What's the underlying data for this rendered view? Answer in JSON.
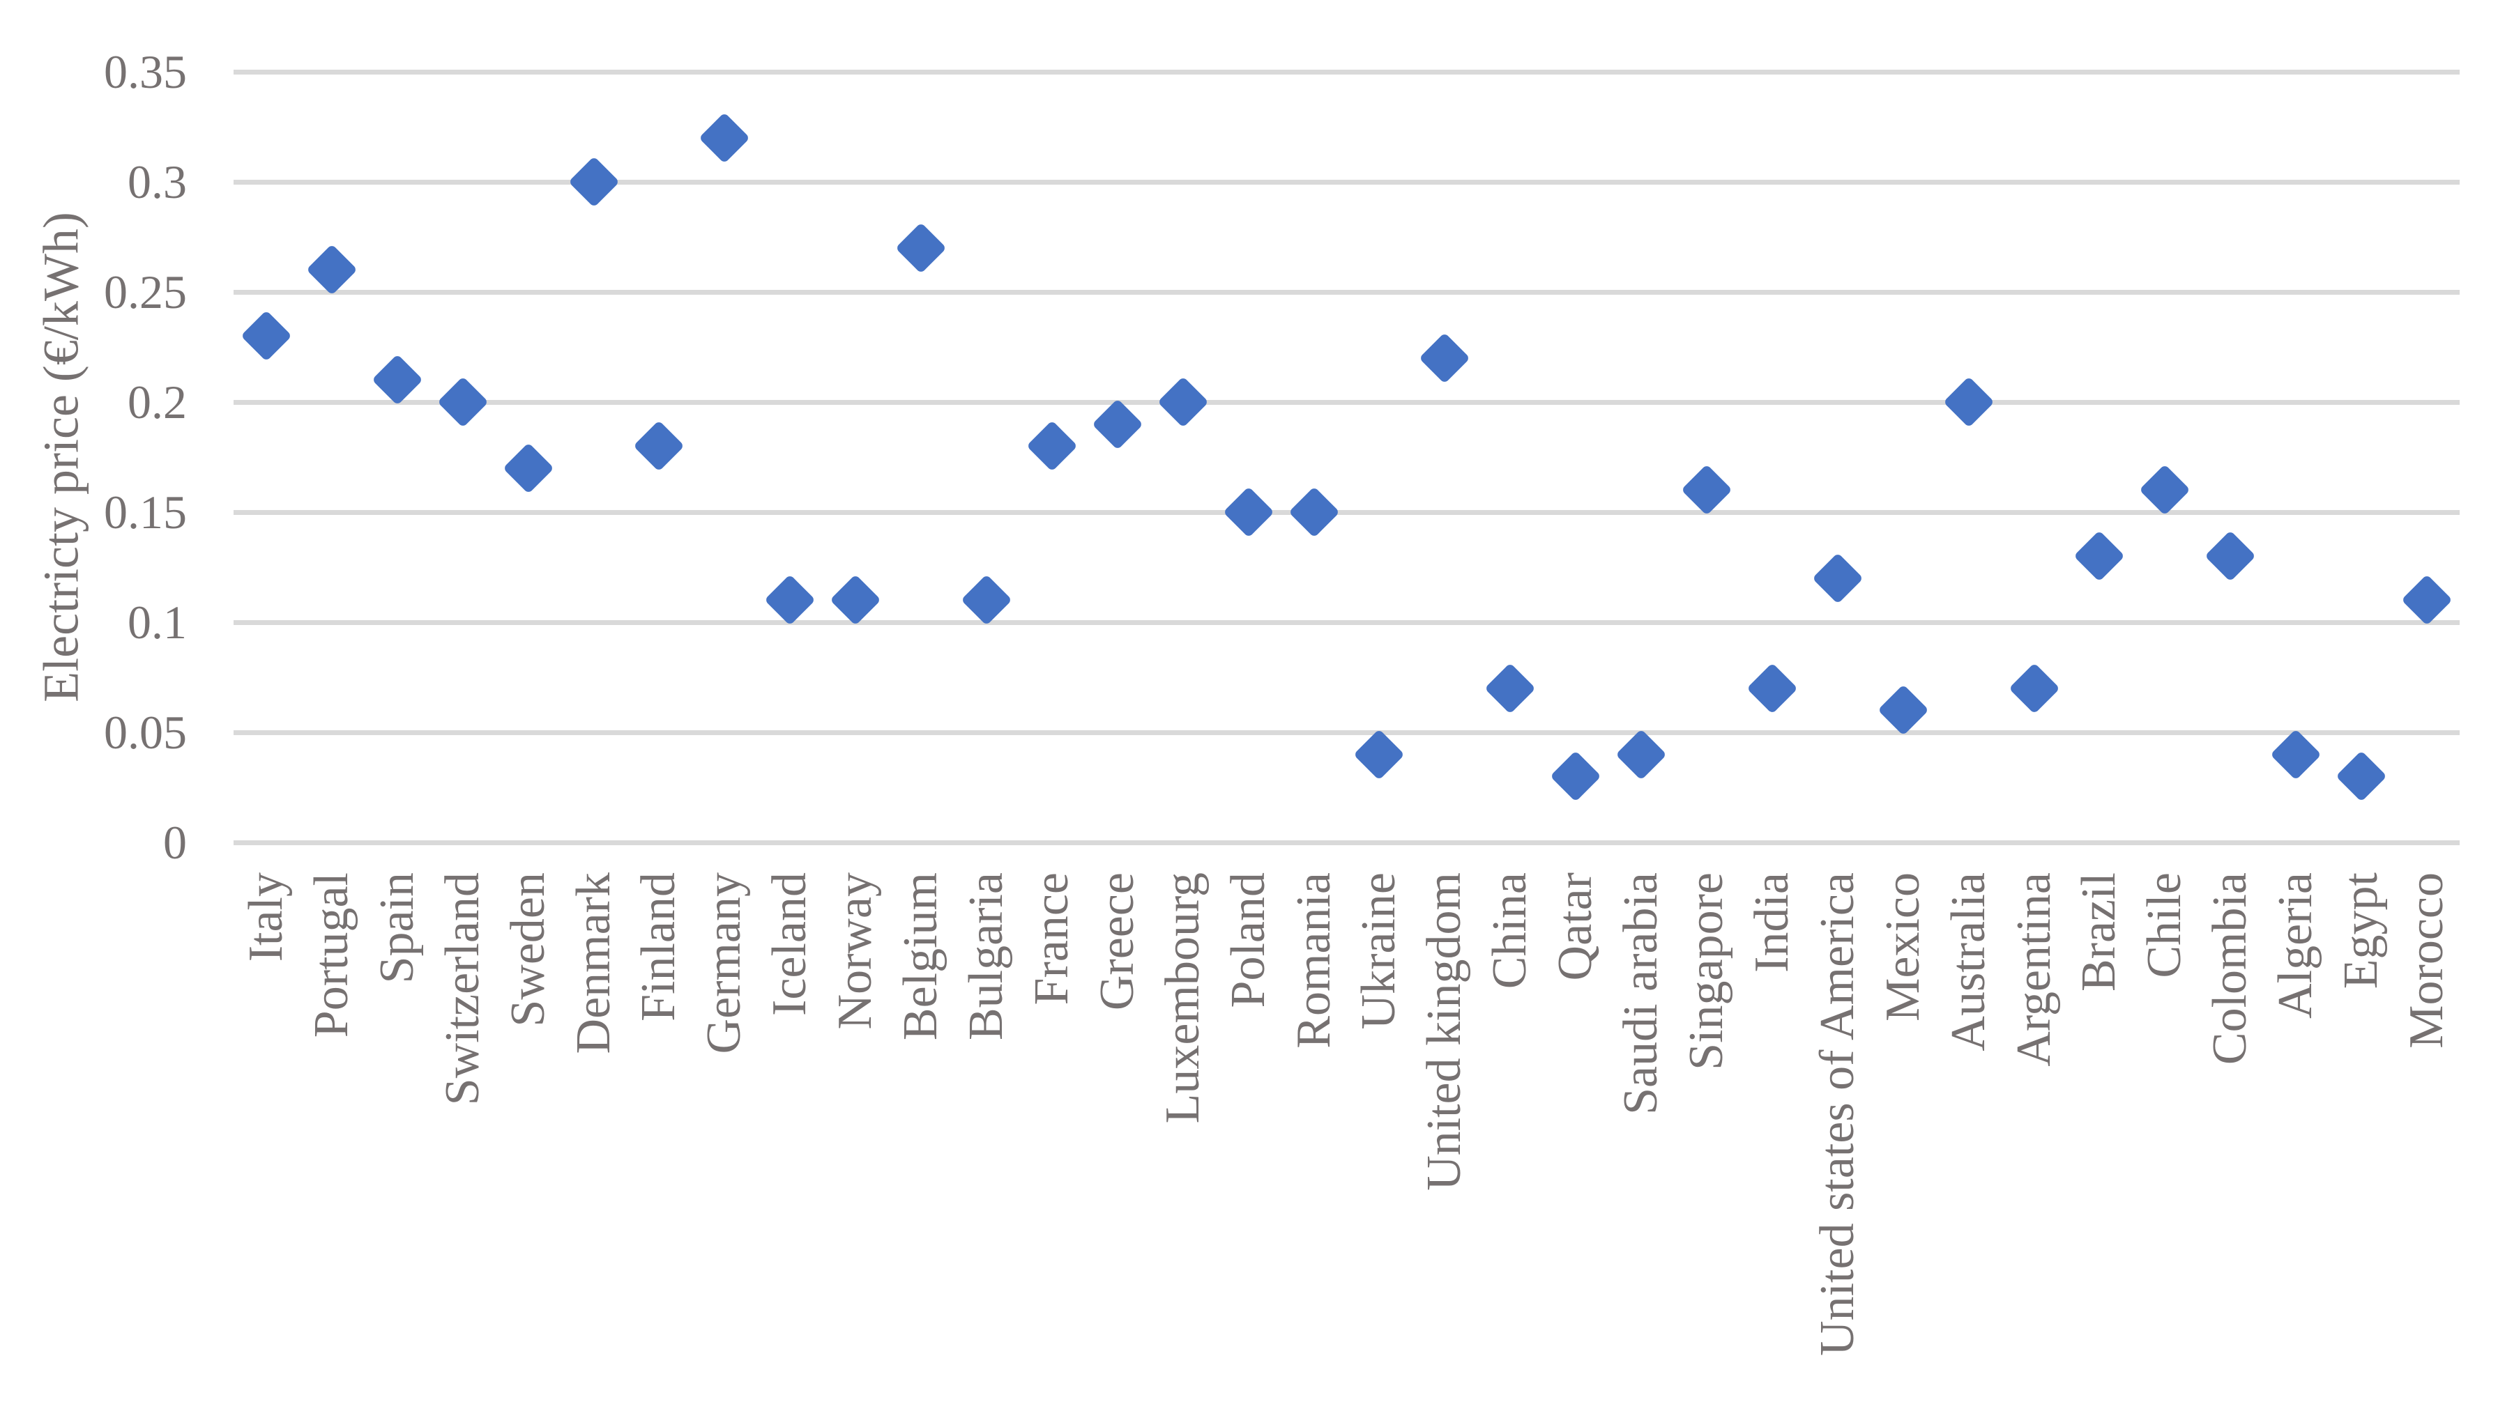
{
  "chart_data": {
    "type": "scatter",
    "title": "",
    "xlabel": "",
    "ylabel": "Electricty price (€/kWh)",
    "legend": "none",
    "grid": "horizontal",
    "ylim": [
      0,
      0.35
    ],
    "yticks": [
      {
        "value": 0,
        "label": "0"
      },
      {
        "value": 0.05,
        "label": "0.05"
      },
      {
        "value": 0.1,
        "label": "0.1"
      },
      {
        "value": 0.15,
        "label": "0.15"
      },
      {
        "value": 0.2,
        "label": "0.2"
      },
      {
        "value": 0.25,
        "label": "0.25"
      },
      {
        "value": 0.3,
        "label": "0.3"
      },
      {
        "value": 0.35,
        "label": "0.35"
      }
    ],
    "categories": [
      "Italy",
      "Portugal",
      "Spain",
      "Switzerland",
      "Sweden",
      "Denmark",
      "Finland",
      "Germany",
      "Iceland",
      "Norway",
      "Belgium",
      "Bulgaria",
      "France",
      "Greece",
      "Luxembourg",
      "Poland",
      "Romania",
      "Ukraine",
      "United kingdom",
      "China",
      "Qatar",
      "Saudi arabia",
      "Singapore",
      "India",
      "United states of America",
      "Mexico",
      "Australia",
      "Argentina",
      "Brazil",
      "Chile",
      "Colombia",
      "Algeria",
      "Egypt",
      "Morocco"
    ],
    "values": [
      0.23,
      0.26,
      0.21,
      0.2,
      0.17,
      0.3,
      0.18,
      0.32,
      0.11,
      0.11,
      0.27,
      0.11,
      0.18,
      0.19,
      0.2,
      0.15,
      0.15,
      0.04,
      0.22,
      0.07,
      0.03,
      0.04,
      0.16,
      0.07,
      0.12,
      0.06,
      0.2,
      0.07,
      0.13,
      0.16,
      0.13,
      0.04,
      0.03,
      0.11
    ],
    "marker": {
      "shape": "diamond",
      "color": "#4472C4"
    },
    "colors": {
      "marker": "#4472C4",
      "gridline": "#D9D9D9",
      "text": "#767171",
      "background": "#FFFFFF"
    }
  }
}
